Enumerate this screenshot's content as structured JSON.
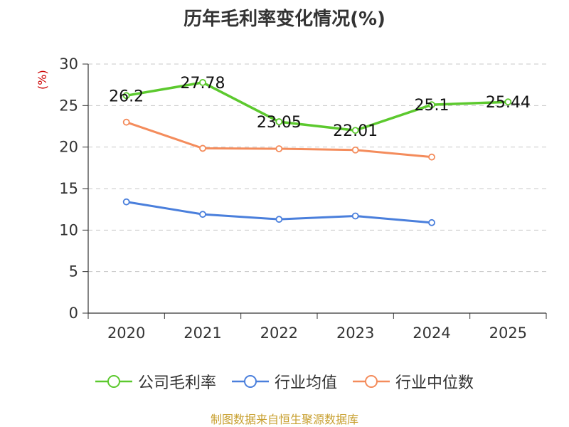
{
  "chart_data": {
    "type": "line",
    "title": "历年毛利率变化情况(%)",
    "ylabel": "(%)",
    "categories": [
      "2020",
      "2021",
      "2022",
      "2023",
      "2024",
      "2025"
    ],
    "ylim": [
      0,
      30
    ],
    "yticks": [
      0,
      5,
      10,
      15,
      20,
      25,
      30
    ],
    "grid": true,
    "legend_position": "bottom",
    "series": [
      {
        "name": "公司毛利率",
        "color": "#5cc92e",
        "values": [
          26.2,
          27.78,
          23.05,
          22.01,
          25.1,
          25.44
        ],
        "labels": [
          "26.2",
          "27.78",
          "23.05",
          "22.01",
          "25.1",
          "25.44"
        ]
      },
      {
        "name": "行业均值",
        "color": "#4a7fdc",
        "values": [
          13.4,
          11.9,
          11.3,
          11.7,
          10.9,
          null
        ]
      },
      {
        "name": "行业中位数",
        "color": "#f48c5c",
        "values": [
          23.0,
          19.85,
          19.8,
          19.65,
          18.8,
          null
        ]
      }
    ],
    "source": "制图数据来自恒生聚源数据库"
  }
}
